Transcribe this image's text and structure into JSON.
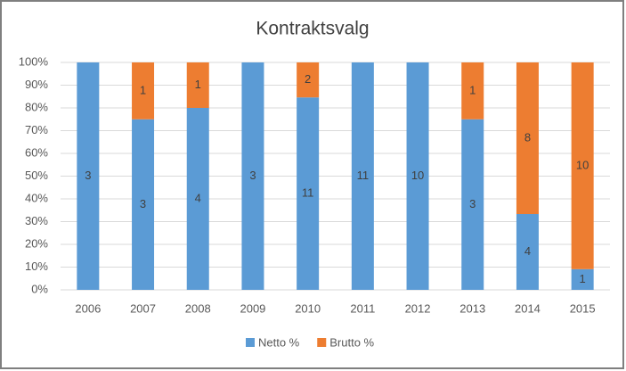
{
  "chart_data": {
    "type": "bar",
    "stacking": "percent",
    "title": "Kontraktsvalg",
    "categories": [
      "2006",
      "2007",
      "2008",
      "2009",
      "2010",
      "2011",
      "2012",
      "2013",
      "2014",
      "2015"
    ],
    "series": [
      {
        "name": "Netto %",
        "color": "#5b9bd5",
        "values": [
          3,
          3,
          4,
          3,
          11,
          11,
          10,
          3,
          4,
          1
        ]
      },
      {
        "name": "Brutto %",
        "color": "#ed7d31",
        "values": [
          0,
          1,
          1,
          0,
          2,
          0,
          0,
          1,
          8,
          10
        ]
      }
    ],
    "ylim": [
      0,
      100
    ],
    "yticks": [
      {
        "value": 0,
        "label": "0%"
      },
      {
        "value": 10,
        "label": "10%"
      },
      {
        "value": 20,
        "label": "20%"
      },
      {
        "value": 30,
        "label": "30%"
      },
      {
        "value": 40,
        "label": "40%"
      },
      {
        "value": 50,
        "label": "50%"
      },
      {
        "value": 60,
        "label": "60%"
      },
      {
        "value": 70,
        "label": "70%"
      },
      {
        "value": 80,
        "label": "80%"
      },
      {
        "value": 90,
        "label": "90%"
      },
      {
        "value": 100,
        "label": "100%"
      }
    ],
    "grid": true,
    "legend": "bottom"
  }
}
